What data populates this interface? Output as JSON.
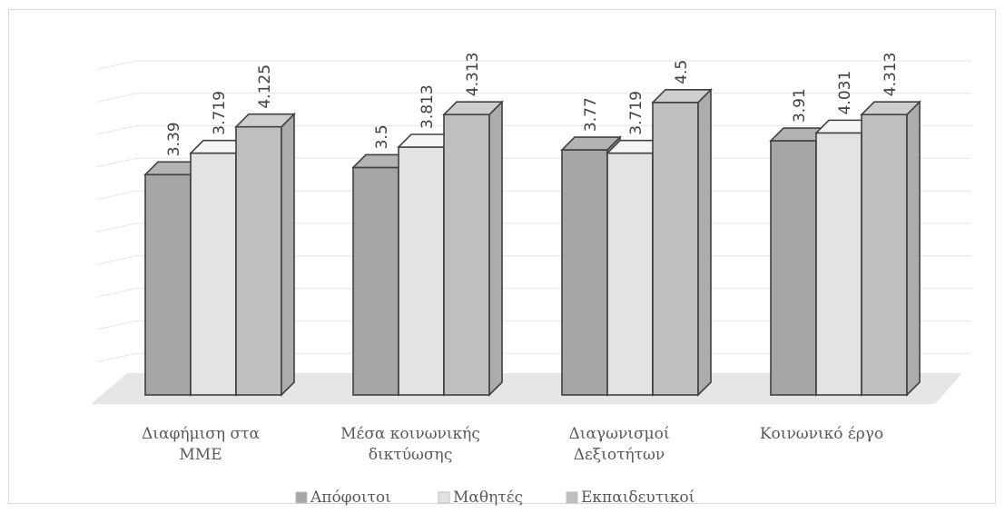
{
  "chart_data": {
    "type": "bar",
    "style": "3d-clustered-column",
    "title": "",
    "xlabel": "",
    "ylabel": "",
    "ylim": [
      0,
      5
    ],
    "grid": true,
    "legend_position": "bottom",
    "categories": [
      [
        "Διαφήμιση στα",
        "ΜΜΕ"
      ],
      [
        "Μέσα κοινωνικής",
        "δικτύωσης"
      ],
      [
        "Διαγωνισμοί",
        "Δεξιοτήτων"
      ],
      [
        "Κοινωνικό έργο"
      ]
    ],
    "series": [
      {
        "name": "Απόφοιτοι",
        "values": [
          3.39,
          3.5,
          3.77,
          3.91
        ],
        "labels": [
          "3.39",
          "3.5",
          "3.77",
          "3.91"
        ],
        "color": "#a6a6a6"
      },
      {
        "name": "Μαθητές",
        "values": [
          3.719,
          3.813,
          3.719,
          4.031
        ],
        "labels": [
          "3.719",
          "3.813",
          "3.719",
          "4.031"
        ],
        "color": "#e3e3e3"
      },
      {
        "name": "Εκπαιδευτικοί",
        "values": [
          4.125,
          4.313,
          4.5,
          4.313
        ],
        "labels": [
          "4.125",
          "4.313",
          "4.5",
          "4.313"
        ],
        "color": "#bfbfbf"
      }
    ]
  }
}
